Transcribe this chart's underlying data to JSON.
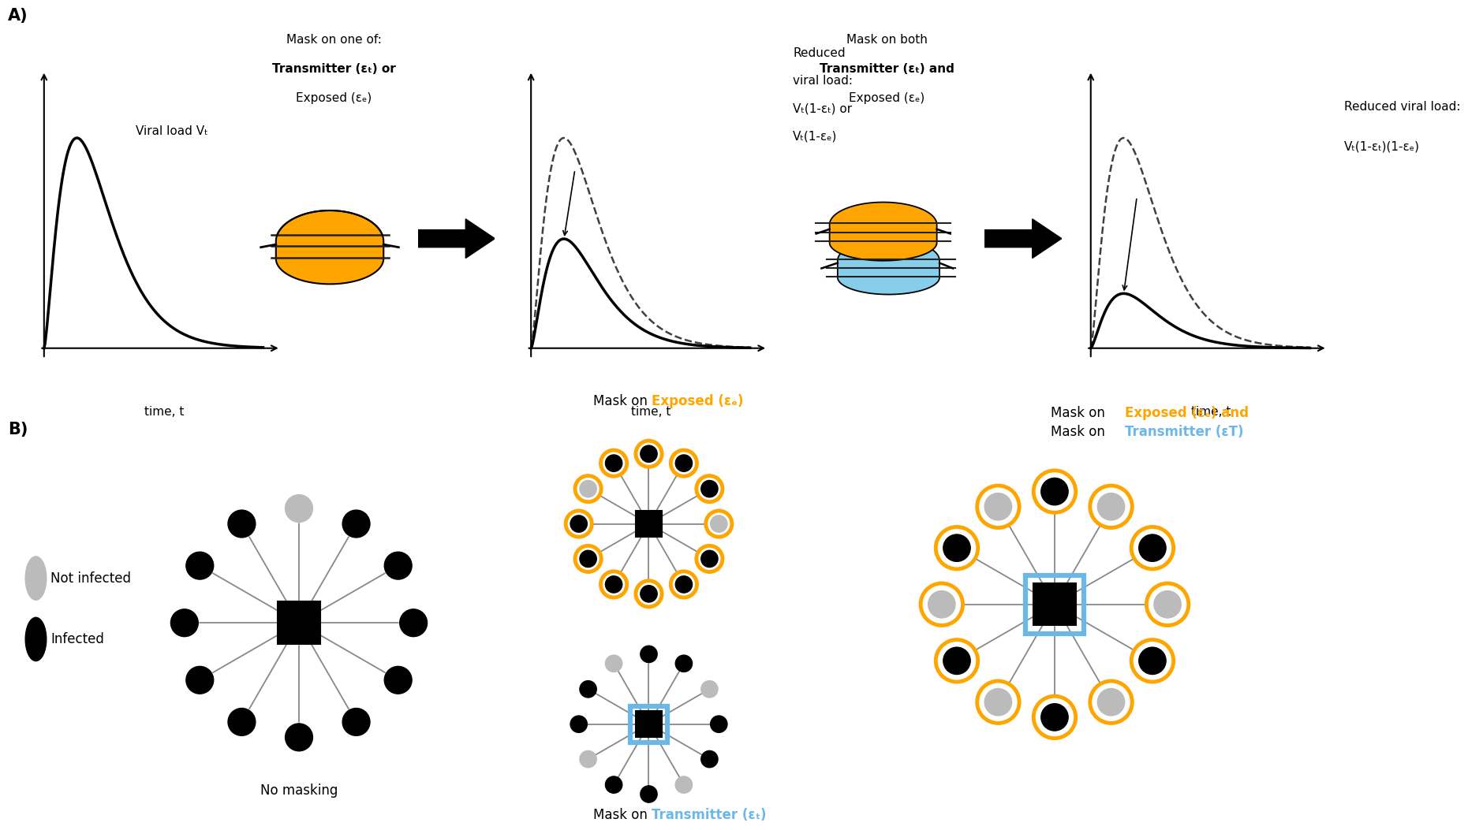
{
  "panel_A_label": "A)",
  "panel_B_label": "B)",
  "bg_color": "#ffffff",
  "orange_color": "#FFA500",
  "light_blue_color": "#87CEEB",
  "blue_border_color": "#6BB8E8",
  "gray_node_color": "#BBBBBB",
  "panel1_annotation": "Viral load Vₜ",
  "panel1_xlabel": "time, t",
  "panel2_text_line1": "Mask on one of:",
  "panel2_text_line2": "Transmitter (εₜ) or",
  "panel2_text_line3": "Exposed (εₑ)",
  "panel3_annotation_line1": "Reduced",
  "panel3_annotation_line2": "viral load:",
  "panel3_annotation_line3": "Vₜ(1-εₜ) or",
  "panel3_annotation_line4": "Vₜ(1-εₑ)",
  "panel3_xlabel": "time, t",
  "panel4_text_line1": "Mask on both",
  "panel4_text_line2": "Transmitter (εₜ) and",
  "panel4_text_line3": "Exposed (εₑ)",
  "panel5_annotation_line1": "Reduced viral load:",
  "panel5_annotation_line2": "Vₜ(1-εₜ)(1-εₑ)",
  "panel5_xlabel": "time, t",
  "legend_not_infected": "Not infected",
  "legend_infected": "Infected",
  "no_masking_label": "No masking",
  "exposed_label_black": "Mask on ",
  "exposed_label_orange": "Exposed (εₑ)",
  "transmitter_label_black": "Mask on ",
  "transmitter_label_blue": "Transmitter (εₜ)",
  "both_line1_black1": "Mask on ",
  "both_line1_orange": "Exposed (εₑ)",
  "both_line1_black2": " and",
  "both_line2_black": "Mask on ",
  "both_line2_blue": "Transmitter (εT)"
}
